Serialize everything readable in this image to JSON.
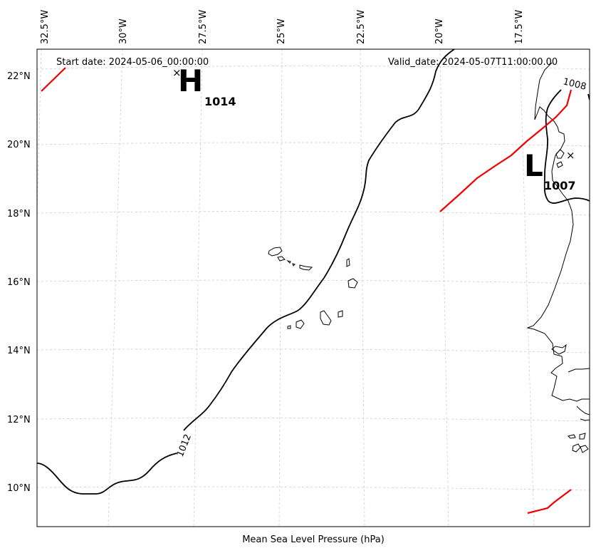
{
  "map": {
    "start_date": "Start date: 2024-05-06_00:00:00",
    "valid_date": "Valid_date: 2024-05-07T11:00:00.00",
    "xlabel": "Mean Sea Level Pressure (hPa)",
    "lon_labels": [
      "32.5°W",
      "30°W",
      "27.5°W",
      "25°W",
      "22.5°W",
      "20°W",
      "17.5°W"
    ],
    "lat_labels": [
      "22°N",
      "20°N",
      "18°N",
      "16°N",
      "14°N",
      "12°N",
      "10°N"
    ],
    "high": {
      "symbol": "H",
      "value": "1014"
    },
    "low": {
      "symbol": "L",
      "value": "1007"
    },
    "contour_labels": [
      "1012",
      "1008"
    ],
    "colors": {
      "isobar": "#000000",
      "front": "#ee0000",
      "grid": "#cccccc"
    }
  }
}
